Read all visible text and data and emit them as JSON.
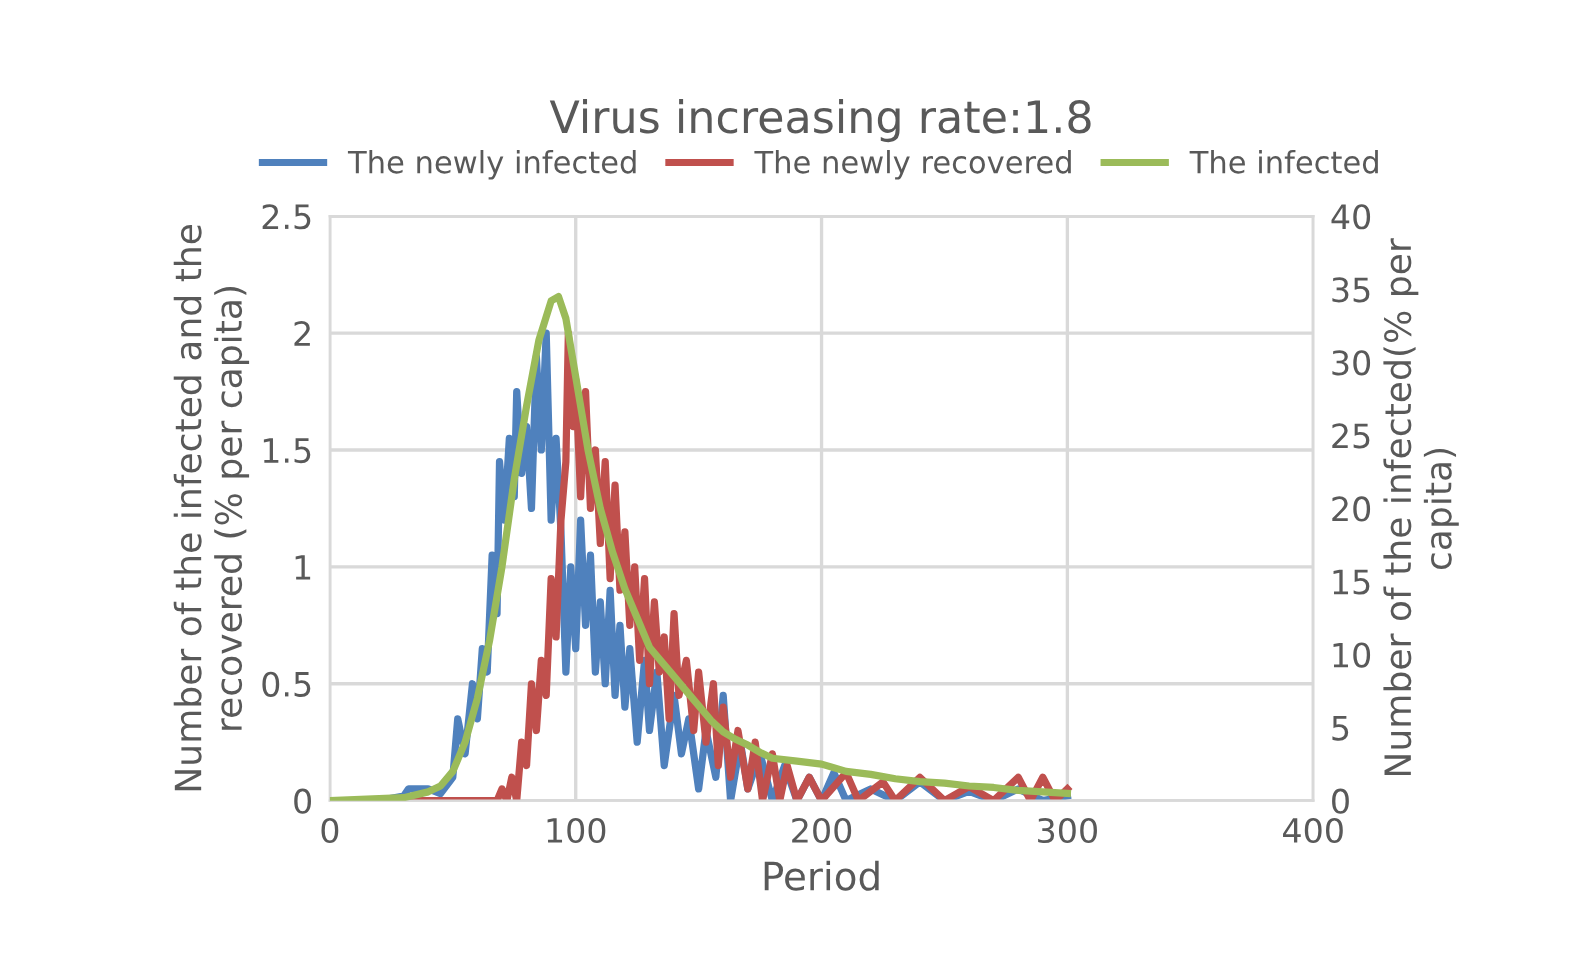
{
  "chart_data": {
    "type": "line",
    "title": "Virus increasing rate:1.8",
    "xlabel": "Period",
    "ylabel": "Number of the infected and the recovered (% per capita)",
    "y2label": "Number of the infected(% per capita)",
    "xlim": [
      0,
      400
    ],
    "xticks": [
      0,
      100,
      200,
      300,
      400
    ],
    "ylim": [
      0,
      2.5
    ],
    "yticks": [
      0,
      0.5,
      1,
      1.5,
      2,
      2.5
    ],
    "y2lim": [
      0,
      40
    ],
    "y2ticks": [
      0,
      5,
      10,
      15,
      20,
      25,
      30,
      35,
      40
    ],
    "grid": true,
    "legend": "top",
    "marker": "none",
    "line_style": "solid",
    "series": [
      {
        "name": "The newly infected",
        "color": "#4f81bd",
        "x": [
          0,
          20,
          30,
          32,
          40,
          45,
          50,
          52,
          55,
          58,
          60,
          62,
          64,
          66,
          68,
          69,
          71,
          73,
          75,
          76,
          78,
          80,
          82,
          84,
          86,
          88,
          90,
          92,
          94,
          96,
          98,
          100,
          102,
          104,
          106,
          108,
          110,
          112,
          114,
          116,
          118,
          120,
          122,
          125,
          128,
          130,
          133,
          136,
          140,
          143,
          146,
          150,
          153,
          157,
          160,
          163,
          167,
          170,
          175,
          180,
          185,
          190,
          195,
          200,
          205,
          210,
          220,
          230,
          240,
          250,
          260,
          270,
          280,
          290,
          300
        ],
        "values": [
          0,
          0,
          0.02,
          0.05,
          0.05,
          0.03,
          0.1,
          0.35,
          0.2,
          0.5,
          0.35,
          0.65,
          0.55,
          1.05,
          0.8,
          1.45,
          1.2,
          1.55,
          1.3,
          1.75,
          1.4,
          1.6,
          1.25,
          1.9,
          1.5,
          2.0,
          1.2,
          1.55,
          1.15,
          0.55,
          1.0,
          0.65,
          1.2,
          0.75,
          1.05,
          0.55,
          0.85,
          0.5,
          0.9,
          0.45,
          0.75,
          0.4,
          0.65,
          0.25,
          0.6,
          0.3,
          0.55,
          0.15,
          0.45,
          0.2,
          0.35,
          0.05,
          0.3,
          0.1,
          0.45,
          0,
          0.25,
          0.05,
          0.2,
          0,
          0.15,
          0,
          0.1,
          0,
          0.12,
          0,
          0.05,
          0,
          0.08,
          0,
          0.04,
          0,
          0.05,
          0,
          0.02
        ]
      },
      {
        "name": "The newly recovered",
        "color": "#c0504d",
        "x": [
          0,
          60,
          68,
          70,
          72,
          74,
          76,
          78,
          80,
          82,
          84,
          86,
          88,
          90,
          92,
          94,
          96,
          97,
          99,
          100,
          102,
          104,
          106,
          108,
          110,
          112,
          114,
          116,
          118,
          120,
          122,
          124,
          126,
          128,
          130,
          132,
          134,
          136,
          138,
          140,
          142,
          145,
          148,
          150,
          153,
          156,
          158,
          160,
          163,
          166,
          170,
          173,
          176,
          180,
          183,
          186,
          190,
          195,
          200,
          210,
          215,
          225,
          230,
          240,
          250,
          260,
          270,
          280,
          285,
          290,
          295,
          300
        ],
        "values": [
          0,
          0,
          0,
          0.05,
          0,
          0.1,
          0,
          0.25,
          0.15,
          0.5,
          0.3,
          0.6,
          0.45,
          0.95,
          0.7,
          1.2,
          1.45,
          2.0,
          1.6,
          1.8,
          1.3,
          1.75,
          1.25,
          1.5,
          1.1,
          1.45,
          0.95,
          1.35,
          0.9,
          1.15,
          0.75,
          1.0,
          0.6,
          0.95,
          0.5,
          0.85,
          0.55,
          0.7,
          0.35,
          0.8,
          0.45,
          0.6,
          0.3,
          0.55,
          0.25,
          0.5,
          0.15,
          0.4,
          0.1,
          0.3,
          0.05,
          0.25,
          0,
          0.2,
          0,
          0.15,
          0,
          0.1,
          0,
          0.12,
          0,
          0.08,
          0,
          0.1,
          0,
          0.06,
          0,
          0.1,
          0,
          0.1,
          0,
          0.05
        ]
      },
      {
        "name": "The infected",
        "color": "#9bbb59",
        "axis": "y2",
        "x": [
          0,
          30,
          40,
          45,
          50,
          55,
          60,
          65,
          70,
          75,
          80,
          85,
          90,
          93,
          96,
          100,
          105,
          110,
          115,
          120,
          125,
          130,
          135,
          140,
          145,
          150,
          155,
          160,
          165,
          170,
          175,
          180,
          190,
          200,
          210,
          220,
          230,
          240,
          250,
          260,
          270,
          280,
          290,
          300
        ],
        "values": [
          0,
          0.2,
          0.6,
          1,
          2,
          4,
          7,
          11,
          16,
          22,
          27,
          31.5,
          34.2,
          34.5,
          33,
          29,
          24,
          20,
          17,
          14.5,
          12.5,
          10.5,
          9.5,
          8.5,
          7.5,
          6.5,
          5.5,
          4.7,
          4.2,
          3.8,
          3.3,
          2.9,
          2.7,
          2.5,
          2.0,
          1.8,
          1.5,
          1.3,
          1.2,
          1.0,
          0.9,
          0.7,
          0.6,
          0.5
        ]
      }
    ]
  }
}
